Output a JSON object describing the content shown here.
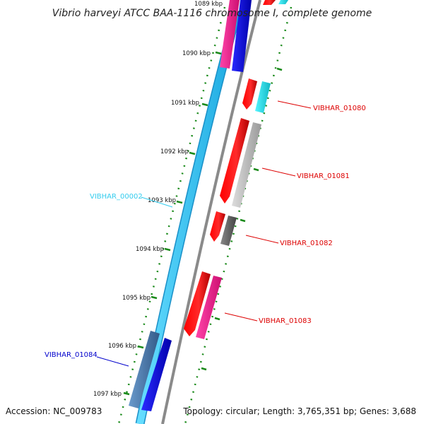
{
  "title": "Vibrio harveyi ATCC BAA-1116 chromosome I, complete genome",
  "footer": {
    "accession": "Accession: NC_009783",
    "topology": "Topology: circular; Length: 3,765,351 bp; Genes: 3,688"
  },
  "scale_ticks": [
    {
      "label": "1089 kbp"
    },
    {
      "label": "1090 kbp"
    },
    {
      "label": "1091 kbp"
    },
    {
      "label": "1092 kbp"
    },
    {
      "label": "1093 kbp"
    },
    {
      "label": "1094 kbp"
    },
    {
      "label": "1095 kbp"
    },
    {
      "label": "1096 kbp"
    },
    {
      "label": "1097 kbp"
    }
  ],
  "gene_labels": [
    {
      "name": "VIBHAR_01080",
      "color": "#dd0000"
    },
    {
      "name": "VIBHAR_01081",
      "color": "#dd0000"
    },
    {
      "name": "VIBHAR_00002",
      "color": "#33ccee"
    },
    {
      "name": "VIBHAR_01082",
      "color": "#dd0000"
    },
    {
      "name": "VIBHAR_01083",
      "color": "#dd0000"
    },
    {
      "name": "VIBHAR_01084",
      "color": "#0000cc"
    }
  ],
  "colors": {
    "forward_cds": "#ff0000",
    "magenta_cds": "#ff3399",
    "cyan_cds": "#22e0e8",
    "gray_cds": "#bbbbbb",
    "dark_gray_cds": "#666666",
    "steel_cds": "#4477aa",
    "blue_feature": "#0000ee",
    "sky_track": "#33ccff",
    "backbone": "#888888",
    "tick_green": "#1a8a1a"
  }
}
